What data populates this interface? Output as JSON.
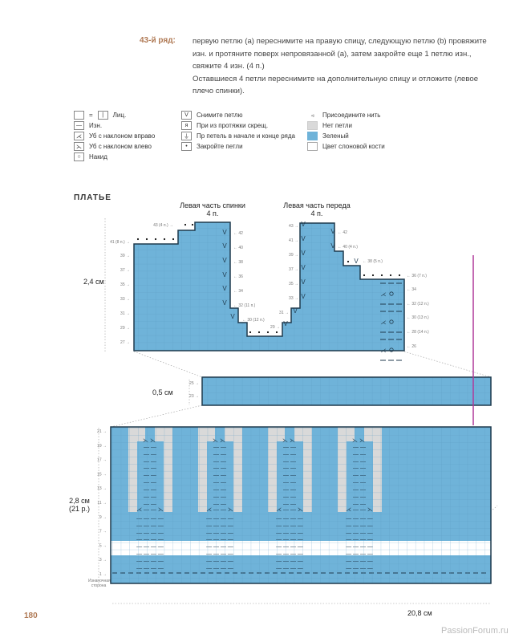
{
  "instructions": {
    "row_label": "43-й ряд:",
    "paragraph1": "первую петлю (a) переснимите на правую спицу, следующую петлю (b) провяжите изн. и протяните поверх непровязанной (a), затем закройте еще 1 петлю изн., свяжите 4 изн. (4 п.)",
    "paragraph2": "Оставшиеся 4 петли переснимите на дополнительную спицу и отложите (левое плечо спинки)."
  },
  "legend": {
    "col1": [
      {
        "icon": "knit-icon",
        "symbol": "| ",
        "label": "Лиц."
      },
      {
        "icon": "purl-icon",
        "symbol": "—",
        "label": "Изн."
      },
      {
        "icon": "decrease-right-icon",
        "symbol": "⋌",
        "label": "Уб с наклоном вправо"
      },
      {
        "icon": "decrease-left-icon",
        "symbol": "⋋",
        "label": "Уб с наклоном влево"
      },
      {
        "icon": "yarn-over-icon",
        "symbol": "○",
        "label": "Накид"
      }
    ],
    "col2": [
      {
        "icon": "slip-stitch-icon",
        "symbol": "V",
        "label": "Снимите петлю"
      },
      {
        "icon": "make-one-twisted-icon",
        "symbol": "ᴙ",
        "label": "При из протяжки скрещ."
      },
      {
        "icon": "increase-edge-icon",
        "symbol": "⏚",
        "label": "Пр петель в начале и конце ряда"
      },
      {
        "icon": "bind-off-icon",
        "symbol": "•",
        "label": "Закройте петли"
      }
    ],
    "col3": [
      {
        "icon": "join-yarn-icon",
        "symbol": "◃",
        "label": "Присоедините нить",
        "color": ""
      },
      {
        "icon": "no-stitch-swatch",
        "symbol": "",
        "label": "Нет петли",
        "color": "#d9d9d9"
      },
      {
        "icon": "green-swatch",
        "symbol": "",
        "label": "Зеленый",
        "color": "#6fb3d9"
      },
      {
        "icon": "ivory-swatch",
        "symbol": "",
        "label": "Цвет слоновой кости",
        "color": "#ffffff"
      }
    ]
  },
  "section_title": "ПЛАТЬЕ",
  "upper_chart": {
    "back_title": "Левая часть спинки",
    "back_count": "4 п.",
    "front_title": "Левая часть переда",
    "front_count": "4 п.",
    "height_label": "2,4 см",
    "back_left_rows": [
      "43 (4 п.)",
      "41 (8 п.)",
      "39",
      "37",
      "35",
      "33",
      "31",
      "29",
      "27"
    ],
    "back_right_rows": [
      "42",
      "40",
      "38",
      "36",
      "34",
      "32 (11 п.)",
      "30 (12 п.)"
    ],
    "front_left_rows": [
      "43",
      "41",
      "39",
      "37",
      "35",
      "33",
      "31",
      "29"
    ],
    "front_right_rows": [
      "42",
      "40 (4 п.)",
      "38 (5 п.)",
      "36 (7 п.)",
      "34",
      "32 (12 п.)",
      "30 (13 п.)",
      "28 (14 п.)",
      "26"
    ]
  },
  "middle_chart": {
    "height_label": "0,5 см",
    "rows": [
      "25",
      "23"
    ]
  },
  "lower_chart": {
    "height_label": "2,8 см",
    "rows_label": "(21 р.)",
    "rows": [
      "21",
      "19",
      "17",
      "15",
      "13",
      "11",
      "9",
      "7",
      "5",
      "3",
      "1"
    ],
    "wrong_side": "Изнаночная сторона",
    "width_label": "20,8 см"
  },
  "colors": {
    "blue": "#6fb3d9",
    "grey": "#d9d9d9",
    "outline": "#1f3a4d",
    "accent": "#b03a9a"
  },
  "page_number": "180",
  "watermark": "PassionForum.ru"
}
